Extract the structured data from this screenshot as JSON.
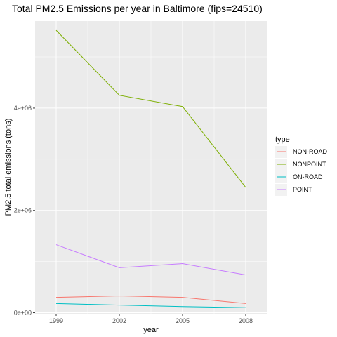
{
  "chart_data": {
    "type": "line",
    "title": "Total PM2.5 Emissions per year in Baltimore (fips=24510)",
    "xlabel": "year",
    "ylabel": "PM2.5 total emissions (tons)",
    "x": [
      1999,
      2002,
      2005,
      2008
    ],
    "x_tick_labels": [
      "1999",
      "2002",
      "2005",
      "2008"
    ],
    "y_ticks": [
      0,
      2000000,
      4000000
    ],
    "y_tick_labels": [
      "0e+00",
      "2e+06",
      "4e+06"
    ],
    "ylim": [
      -20000,
      5700000
    ],
    "xlim": [
      1998.0,
      2009.0
    ],
    "grid": true,
    "legend": {
      "title": "type",
      "placement": "right"
    },
    "series": [
      {
        "name": "NON-ROAD",
        "color": "#F8766D",
        "values": [
          300000,
          330000,
          300000,
          180000
        ]
      },
      {
        "name": "NONPOINT",
        "color": "#7CAE00",
        "values": [
          5520000,
          4250000,
          4030000,
          2450000
        ]
      },
      {
        "name": "ON-ROAD",
        "color": "#00BFC4",
        "values": [
          180000,
          150000,
          120000,
          100000
        ]
      },
      {
        "name": "POINT",
        "color": "#C77CFF",
        "values": [
          1330000,
          880000,
          960000,
          740000
        ]
      }
    ]
  }
}
